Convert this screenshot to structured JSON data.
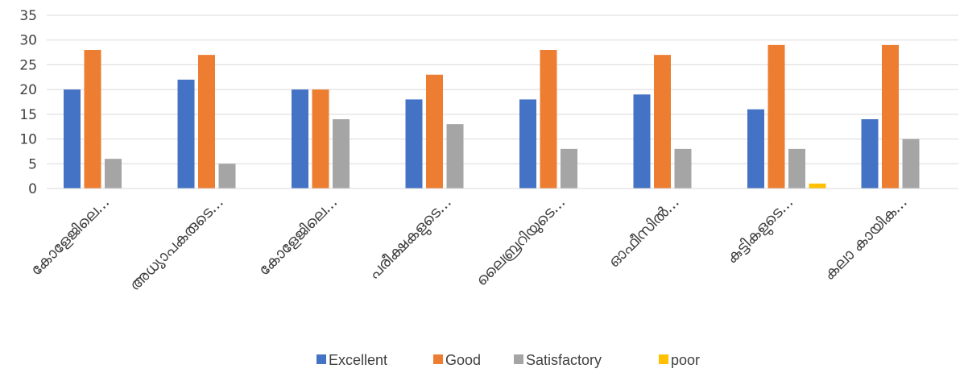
{
  "chart_data": {
    "type": "bar",
    "title": "",
    "xlabel": "",
    "ylabel": "",
    "ylim": [
      0,
      35
    ],
    "yticks": [
      0,
      5,
      10,
      15,
      20,
      25,
      30,
      35
    ],
    "grid": true,
    "legend_position": "bottom",
    "categories": [
      "കോളേജിലെ...",
      "അധ്യാപകരുടെ...",
      "കോളേജിലെ...",
      "പരീക്ഷകളുടെ...",
      "ലൈബ്രറിയുടെ...",
      "ഓഫീസിൽ...",
      "കുട്ടികളുടെ...",
      "കലാ   കായിക..."
    ],
    "series": [
      {
        "name": "Excellent",
        "color": "#4472c4",
        "values": [
          20,
          22,
          20,
          18,
          18,
          19,
          16,
          14
        ]
      },
      {
        "name": "Good",
        "color": "#ed7d31",
        "values": [
          28,
          27,
          20,
          23,
          28,
          27,
          29,
          29
        ]
      },
      {
        "name": "Satisfactory",
        "color": "#a5a5a5",
        "values": [
          6,
          5,
          14,
          13,
          8,
          8,
          8,
          10
        ]
      },
      {
        "name": "poor",
        "color": "#ffc000",
        "values": [
          0,
          0,
          0,
          0,
          0,
          0,
          1,
          0
        ]
      }
    ]
  }
}
